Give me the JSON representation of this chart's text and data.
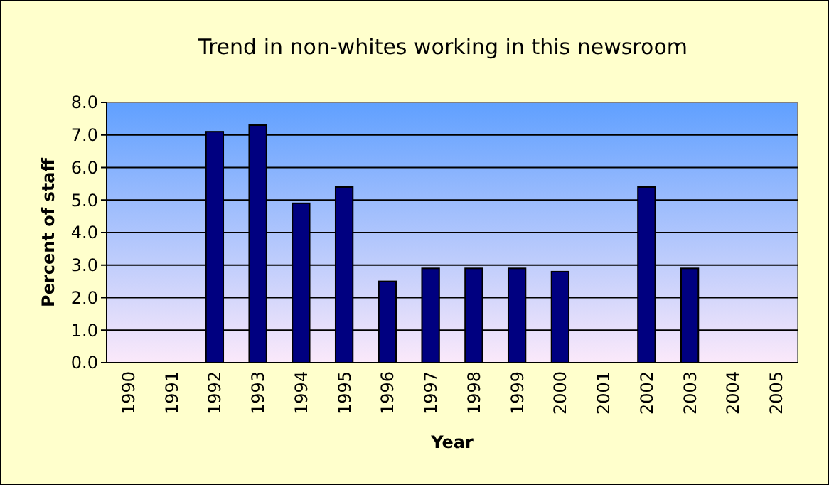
{
  "chart_data": {
    "type": "bar",
    "title": "Trend in non-whites working in this newsroom",
    "xlabel": "Year",
    "ylabel": "Percent of staff",
    "categories": [
      "1990",
      "1991",
      "1992",
      "1993",
      "1994",
      "1995",
      "1996",
      "1997",
      "1998",
      "1999",
      "2000",
      "2001",
      "2002",
      "2003",
      "2004",
      "2005"
    ],
    "values": [
      null,
      null,
      7.1,
      7.3,
      4.9,
      5.4,
      2.5,
      2.9,
      2.9,
      2.9,
      2.8,
      null,
      5.4,
      2.9,
      null,
      null
    ],
    "color": "#000080",
    "ylim": [
      0,
      8
    ],
    "yticks": [
      {
        "value": 0,
        "label": "0.0"
      },
      {
        "value": 1,
        "label": "1.0"
      },
      {
        "value": 2,
        "label": "2.0"
      },
      {
        "value": 3,
        "label": "3.0"
      },
      {
        "value": 4,
        "label": "4.0"
      },
      {
        "value": 5,
        "label": "5.0"
      },
      {
        "value": 6,
        "label": "6.0"
      },
      {
        "value": 7,
        "label": "7.0"
      },
      {
        "value": 8,
        "label": "8.0"
      }
    ],
    "grid": "y"
  }
}
